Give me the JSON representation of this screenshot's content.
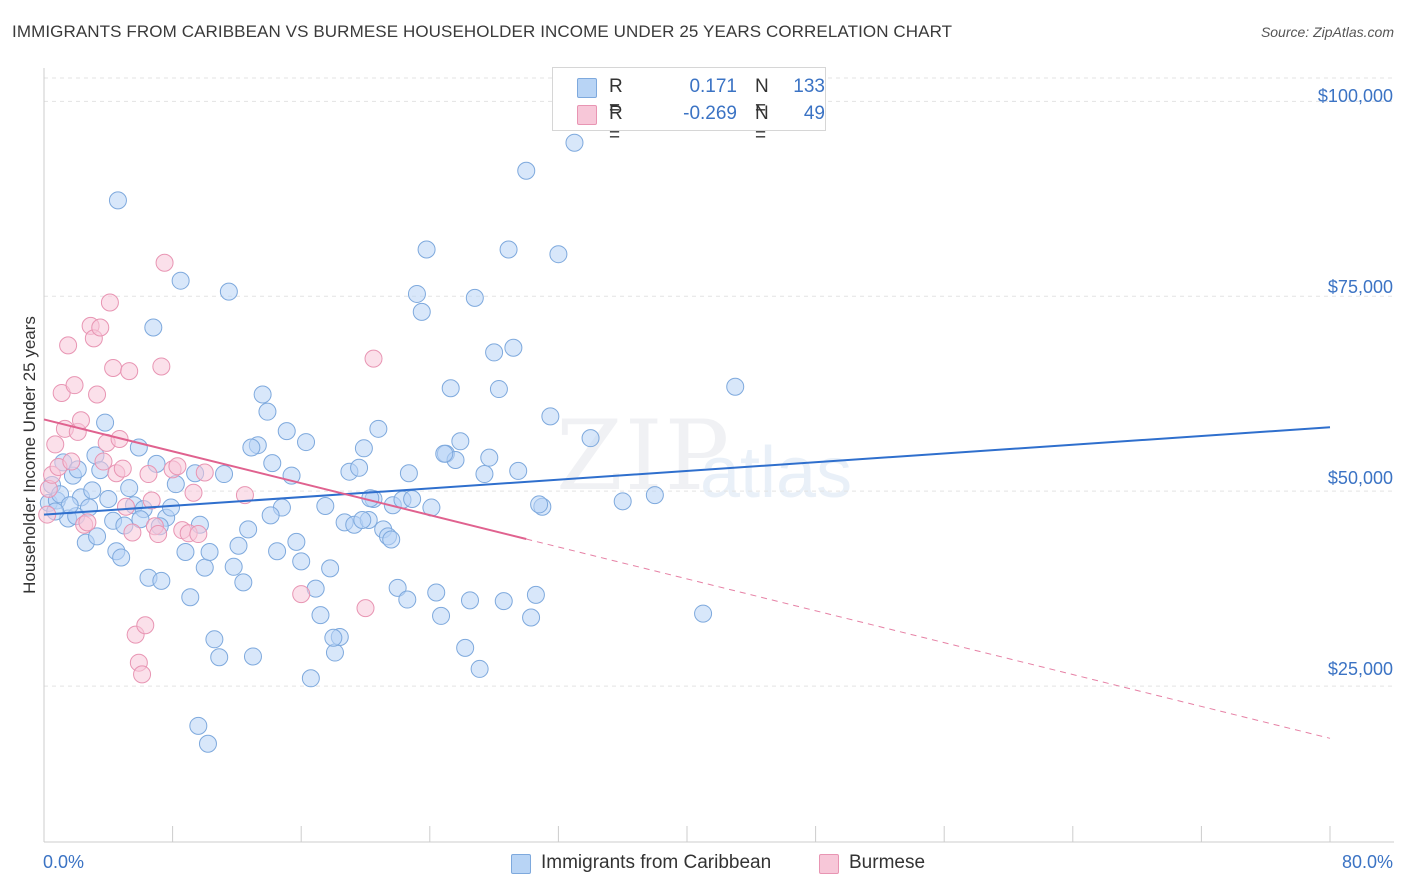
{
  "title": "IMMIGRANTS FROM CARIBBEAN VS BURMESE HOUSEHOLDER INCOME UNDER 25 YEARS CORRELATION CHART",
  "source": "Source: ZipAtlas.com",
  "watermark": {
    "zip": "ZIP",
    "atlas": "atlas"
  },
  "legend": {
    "r_label": "R =",
    "n_label": "N =",
    "rows": [
      {
        "r": "0.171",
        "n": "133",
        "color": "#b8d4f5"
      },
      {
        "r": "-0.269",
        "n": "49",
        "color": "#f7c7d8"
      }
    ]
  },
  "bottom_legend": {
    "series1": "Immigrants from Caribbean",
    "series2": "Burmese"
  },
  "axes": {
    "x_min_label": "0.0%",
    "x_max_label": "80.0%",
    "y_label": "Householder Income Under 25 years",
    "y_ticks": [
      "$100,000",
      "$75,000",
      "$50,000",
      "$25,000"
    ]
  },
  "colors": {
    "blue_fill": "#b8d4f5",
    "blue_stroke": "#7ea9dd",
    "blue_line": "#2f6fcd",
    "pink_fill": "#f7c7d8",
    "pink_stroke": "#e895b3",
    "pink_line": "#e0628f",
    "accent_text": "#3b73c4"
  },
  "chart_data": {
    "type": "scatter",
    "title": "IMMIGRANTS FROM CARIBBEAN VS BURMESE HOUSEHOLDER INCOME UNDER 25 YEARS CORRELATION CHART",
    "xlabel": "",
    "ylabel": "Householder Income Under 25 years",
    "xlim": [
      0,
      80
    ],
    "ylim": [
      5000,
      103000
    ],
    "x_unit": "%",
    "grid": true,
    "y_ticks": [
      25000,
      50000,
      75000,
      100000
    ],
    "series": [
      {
        "name": "Immigrants from Caribbean",
        "r": 0.171,
        "n": 133,
        "trend": {
          "x": [
            0,
            80
          ],
          "y": [
            47000,
            58200
          ],
          "dashed_from": null
        },
        "points": [
          [
            0.3,
            48500
          ],
          [
            0.5,
            50800
          ],
          [
            0.8,
            48800
          ],
          [
            1.0,
            49600
          ],
          [
            1.2,
            53700
          ],
          [
            1.5,
            46500
          ],
          [
            1.8,
            52000
          ],
          [
            2.0,
            46800
          ],
          [
            2.3,
            49200
          ],
          [
            2.6,
            43400
          ],
          [
            2.8,
            47900
          ],
          [
            3.0,
            50100
          ],
          [
            3.2,
            54600
          ],
          [
            3.5,
            52700
          ],
          [
            3.8,
            58800
          ],
          [
            4.0,
            49000
          ],
          [
            4.3,
            46200
          ],
          [
            4.5,
            42300
          ],
          [
            4.8,
            41500
          ],
          [
            5.0,
            45600
          ],
          [
            5.3,
            50400
          ],
          [
            5.6,
            48200
          ],
          [
            5.9,
            55600
          ],
          [
            6.2,
            47700
          ],
          [
            6.5,
            38900
          ],
          [
            6.8,
            71000
          ],
          [
            7.0,
            53500
          ],
          [
            7.3,
            38500
          ],
          [
            7.6,
            46600
          ],
          [
            7.9,
            47900
          ],
          [
            8.2,
            50900
          ],
          [
            8.5,
            77000
          ],
          [
            8.8,
            42200
          ],
          [
            9.1,
            36400
          ],
          [
            9.4,
            52300
          ],
          [
            9.7,
            45700
          ],
          [
            10.0,
            40200
          ],
          [
            10.3,
            42200
          ],
          [
            10.6,
            31000
          ],
          [
            10.9,
            28700
          ],
          [
            11.2,
            52200
          ],
          [
            11.5,
            75600
          ],
          [
            11.8,
            40300
          ],
          [
            12.1,
            43000
          ],
          [
            12.4,
            38300
          ],
          [
            12.7,
            45100
          ],
          [
            13.0,
            28800
          ],
          [
            13.3,
            55900
          ],
          [
            13.6,
            62400
          ],
          [
            13.9,
            60200
          ],
          [
            14.2,
            53600
          ],
          [
            14.5,
            42300
          ],
          [
            14.8,
            47900
          ],
          [
            15.1,
            57700
          ],
          [
            15.4,
            52000
          ],
          [
            15.7,
            43500
          ],
          [
            16.0,
            41000
          ],
          [
            16.3,
            56300
          ],
          [
            16.6,
            26000
          ],
          [
            16.9,
            37500
          ],
          [
            17.2,
            34100
          ],
          [
            17.5,
            48100
          ],
          [
            17.8,
            40100
          ],
          [
            18.1,
            29300
          ],
          [
            18.4,
            31300
          ],
          [
            18.7,
            46000
          ],
          [
            19.0,
            52500
          ],
          [
            19.3,
            45700
          ],
          [
            19.6,
            53000
          ],
          [
            19.9,
            55500
          ],
          [
            20.2,
            46300
          ],
          [
            20.5,
            49000
          ],
          [
            20.8,
            58000
          ],
          [
            21.1,
            45100
          ],
          [
            21.4,
            44200
          ],
          [
            21.7,
            48200
          ],
          [
            22.0,
            37600
          ],
          [
            22.3,
            48900
          ],
          [
            22.6,
            36100
          ],
          [
            22.9,
            49000
          ],
          [
            23.2,
            75300
          ],
          [
            23.5,
            73000
          ],
          [
            23.8,
            81000
          ],
          [
            24.1,
            47900
          ],
          [
            24.4,
            37000
          ],
          [
            24.7,
            34000
          ],
          [
            25.0,
            54800
          ],
          [
            25.3,
            63200
          ],
          [
            25.6,
            54000
          ],
          [
            25.9,
            56400
          ],
          [
            26.2,
            29900
          ],
          [
            26.5,
            36000
          ],
          [
            26.8,
            74800
          ],
          [
            27.1,
            27200
          ],
          [
            27.4,
            52200
          ],
          [
            27.7,
            54300
          ],
          [
            28.0,
            67800
          ],
          [
            28.3,
            63100
          ],
          [
            28.6,
            35900
          ],
          [
            28.9,
            81000
          ],
          [
            29.2,
            68400
          ],
          [
            29.5,
            52600
          ],
          [
            30.0,
            91100
          ],
          [
            30.3,
            33800
          ],
          [
            30.6,
            36700
          ],
          [
            31.0,
            48000
          ],
          [
            31.5,
            59600
          ],
          [
            32.0,
            80400
          ],
          [
            33.0,
            94700
          ],
          [
            34.0,
            56800
          ],
          [
            36.0,
            48700
          ],
          [
            38.0,
            49500
          ],
          [
            41.0,
            34300
          ],
          [
            43.0,
            63400
          ],
          [
            4.6,
            87300
          ],
          [
            9.6,
            19900
          ],
          [
            10.2,
            17600
          ],
          [
            12.9,
            55600
          ],
          [
            14.1,
            46900
          ],
          [
            18.0,
            31200
          ],
          [
            21.6,
            43800
          ],
          [
            20.3,
            49100
          ],
          [
            6.0,
            46400
          ],
          [
            7.2,
            45500
          ],
          [
            3.3,
            44200
          ],
          [
            1.6,
            48200
          ],
          [
            0.7,
            47400
          ],
          [
            2.1,
            52800
          ],
          [
            24.9,
            54800
          ],
          [
            19.8,
            46300
          ],
          [
            22.7,
            52300
          ],
          [
            30.8,
            48300
          ]
        ]
      },
      {
        "name": "Burmese",
        "r": -0.269,
        "n": 49,
        "trend": {
          "x": [
            0,
            80
          ],
          "y": [
            59200,
            18300
          ],
          "solid_until_x": 30
        },
        "points": [
          [
            0.2,
            47000
          ],
          [
            0.3,
            50300
          ],
          [
            0.5,
            52100
          ],
          [
            0.7,
            56000
          ],
          [
            0.9,
            53100
          ],
          [
            1.1,
            62600
          ],
          [
            1.3,
            58000
          ],
          [
            1.5,
            68700
          ],
          [
            1.7,
            53800
          ],
          [
            1.9,
            63600
          ],
          [
            2.1,
            57600
          ],
          [
            2.3,
            59100
          ],
          [
            2.5,
            45700
          ],
          [
            2.7,
            46000
          ],
          [
            2.9,
            71200
          ],
          [
            3.1,
            69600
          ],
          [
            3.3,
            62400
          ],
          [
            3.5,
            71000
          ],
          [
            3.7,
            53800
          ],
          [
            3.9,
            56200
          ],
          [
            4.1,
            74200
          ],
          [
            4.3,
            65800
          ],
          [
            4.5,
            52300
          ],
          [
            4.7,
            56700
          ],
          [
            4.9,
            52900
          ],
          [
            5.1,
            48000
          ],
          [
            5.3,
            65400
          ],
          [
            5.5,
            44700
          ],
          [
            5.7,
            31600
          ],
          [
            5.9,
            28000
          ],
          [
            6.1,
            26500
          ],
          [
            6.3,
            32800
          ],
          [
            6.5,
            52200
          ],
          [
            6.7,
            48800
          ],
          [
            6.9,
            45500
          ],
          [
            7.1,
            44500
          ],
          [
            7.3,
            66000
          ],
          [
            7.5,
            79300
          ],
          [
            8.0,
            52800
          ],
          [
            8.3,
            53200
          ],
          [
            8.6,
            45000
          ],
          [
            9.0,
            44600
          ],
          [
            9.3,
            49800
          ],
          [
            9.6,
            44500
          ],
          [
            10.0,
            52400
          ],
          [
            12.5,
            49500
          ],
          [
            16.0,
            36800
          ],
          [
            20.0,
            35000
          ],
          [
            20.5,
            67000
          ]
        ]
      }
    ]
  }
}
